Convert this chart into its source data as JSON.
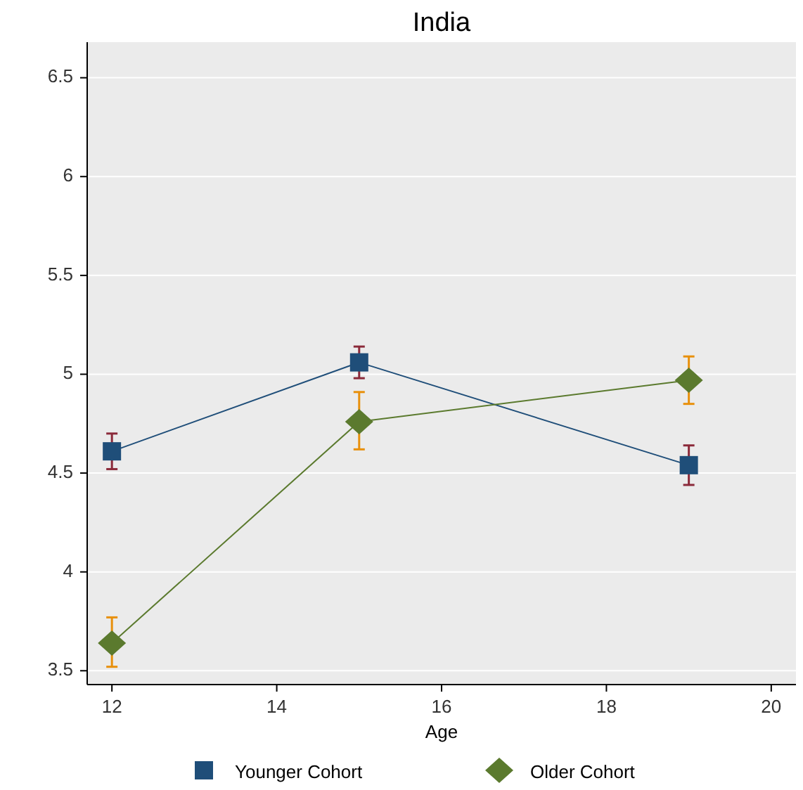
{
  "chart_data": {
    "type": "line",
    "title": "India",
    "xlabel": "Age",
    "x": [
      12,
      15,
      19
    ],
    "series": [
      {
        "name": "Younger Cohort",
        "color": "#1f4e79",
        "marker": "square",
        "values": [
          4.61,
          5.06,
          4.54
        ],
        "errors": [
          [
            4.52,
            4.7
          ],
          [
            4.98,
            5.14
          ],
          [
            4.44,
            4.64
          ]
        ]
      },
      {
        "name": "Older Cohort",
        "color": "#5b7a2e",
        "marker": "diamond",
        "values": [
          3.64,
          4.76,
          4.97
        ],
        "errors": [
          [
            3.52,
            3.77
          ],
          [
            4.62,
            4.91
          ],
          [
            4.85,
            5.09
          ]
        ]
      }
    ],
    "xlim": [
      11.7,
      20.3
    ],
    "xticks": [
      12,
      14,
      16,
      18,
      20
    ],
    "ylim": [
      3.43,
      6.68
    ],
    "yticks": [
      3.5,
      4,
      4.5,
      5,
      5.5,
      6,
      6.5
    ],
    "grid": "y",
    "legend": "bottom",
    "line_style": "solid"
  }
}
